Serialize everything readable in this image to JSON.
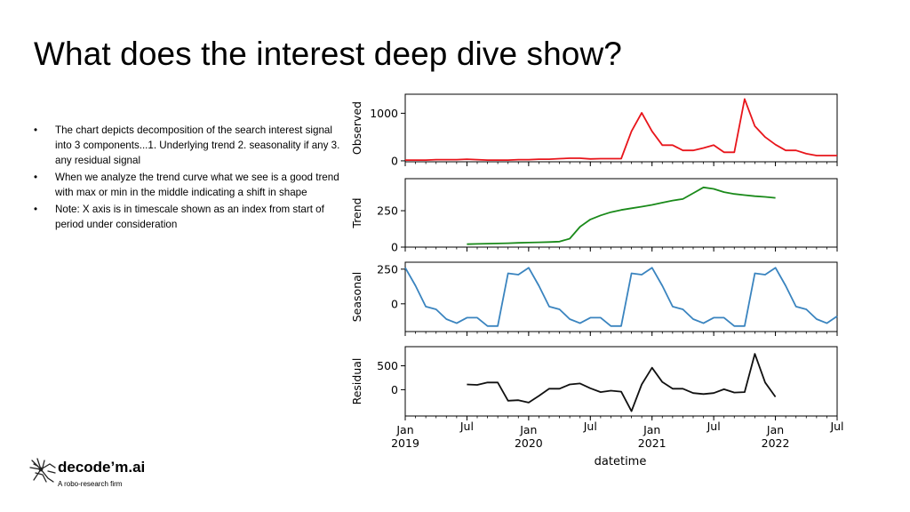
{
  "slide": {
    "title": "What does the interest deep dive show?",
    "bullets": [
      "The chart depicts decomposition of the search interest signal into 3 components...1. Underlying trend 2. seasonality if any 3. any residual signal",
      "When we analyze the trend curve what we see is a good trend with max or min in the middle indicating a shift in shape",
      "Note: X axis is in timescale shown as an index from start of period under consideration"
    ]
  },
  "logo": {
    "name": "decode’m.ai",
    "tagline": "A robo-research firm"
  },
  "chart_data": {
    "type": "line",
    "xlabel": "datetime",
    "x_start": "2019-01",
    "x_ticks": [
      {
        "label": "Jan",
        "sub": "2019",
        "month_index": 0
      },
      {
        "label": "Jul",
        "sub": "",
        "month_index": 6
      },
      {
        "label": "Jan",
        "sub": "2020",
        "month_index": 12
      },
      {
        "label": "Jul",
        "sub": "",
        "month_index": 18
      },
      {
        "label": "Jan",
        "sub": "2021",
        "month_index": 24
      },
      {
        "label": "Jul",
        "sub": "",
        "month_index": 30
      },
      {
        "label": "Jan",
        "sub": "2022",
        "month_index": 36
      },
      {
        "label": "Jul",
        "sub": "",
        "month_index": 42
      }
    ],
    "xlim": [
      0,
      42
    ],
    "panels": [
      {
        "ylabel": "Observed",
        "color": "#e8151b",
        "ylim": [
          -20,
          1400
        ],
        "yticks": [
          {
            "value": 0,
            "label": "0"
          },
          {
            "value": 1000,
            "label": "1000"
          }
        ],
        "x0": 0,
        "values": [
          15,
          15,
          15,
          25,
          25,
          25,
          35,
          25,
          15,
          15,
          15,
          25,
          25,
          35,
          35,
          45,
          55,
          55,
          40,
          45,
          45,
          45,
          620,
          1010,
          620,
          330,
          330,
          220,
          220,
          270,
          330,
          180,
          180,
          1300,
          730,
          500,
          340,
          220,
          220,
          150,
          110,
          110,
          110
        ]
      },
      {
        "ylabel": "Trend",
        "color": "#1a8a1a",
        "ylim": [
          0,
          470
        ],
        "yticks": [
          {
            "value": 0,
            "label": "0"
          },
          {
            "value": 250,
            "label": "250"
          }
        ],
        "x0": 6,
        "values": [
          20,
          22,
          24,
          25,
          27,
          29,
          31,
          33,
          35,
          38,
          58,
          140,
          190,
          218,
          240,
          255,
          267,
          278,
          290,
          305,
          320,
          330,
          370,
          410,
          400,
          378,
          365,
          357,
          350,
          345,
          338
        ]
      },
      {
        "ylabel": "Seasonal",
        "color": "#3a84bf",
        "ylim": [
          -200,
          300
        ],
        "yticks": [
          {
            "value": 0,
            "label": "0"
          },
          {
            "value": 250,
            "label": "250"
          }
        ],
        "x0": 0,
        "values": [
          260,
          130,
          -20,
          -40,
          -110,
          -140,
          -100,
          -100,
          -160,
          -160,
          220,
          210,
          260,
          130,
          -20,
          -40,
          -110,
          -140,
          -100,
          -100,
          -160,
          -160,
          220,
          210,
          260,
          130,
          -20,
          -40,
          -110,
          -140,
          -100,
          -100,
          -160,
          -160,
          220,
          210,
          260,
          130,
          -20,
          -40,
          -110,
          -140,
          -90
        ]
      },
      {
        "ylabel": "Residual",
        "color": "#111111",
        "ylim": [
          -550,
          900
        ],
        "yticks": [
          {
            "value": 0,
            "label": "0"
          },
          {
            "value": 500,
            "label": "500"
          }
        ],
        "x0": 6,
        "values": [
          110,
          100,
          150,
          150,
          -230,
          -220,
          -270,
          -130,
          20,
          20,
          110,
          130,
          30,
          -50,
          -20,
          -40,
          -450,
          110,
          460,
          160,
          20,
          20,
          -70,
          -90,
          -70,
          10,
          -60,
          -50,
          750,
          150,
          -150
        ]
      }
    ]
  }
}
